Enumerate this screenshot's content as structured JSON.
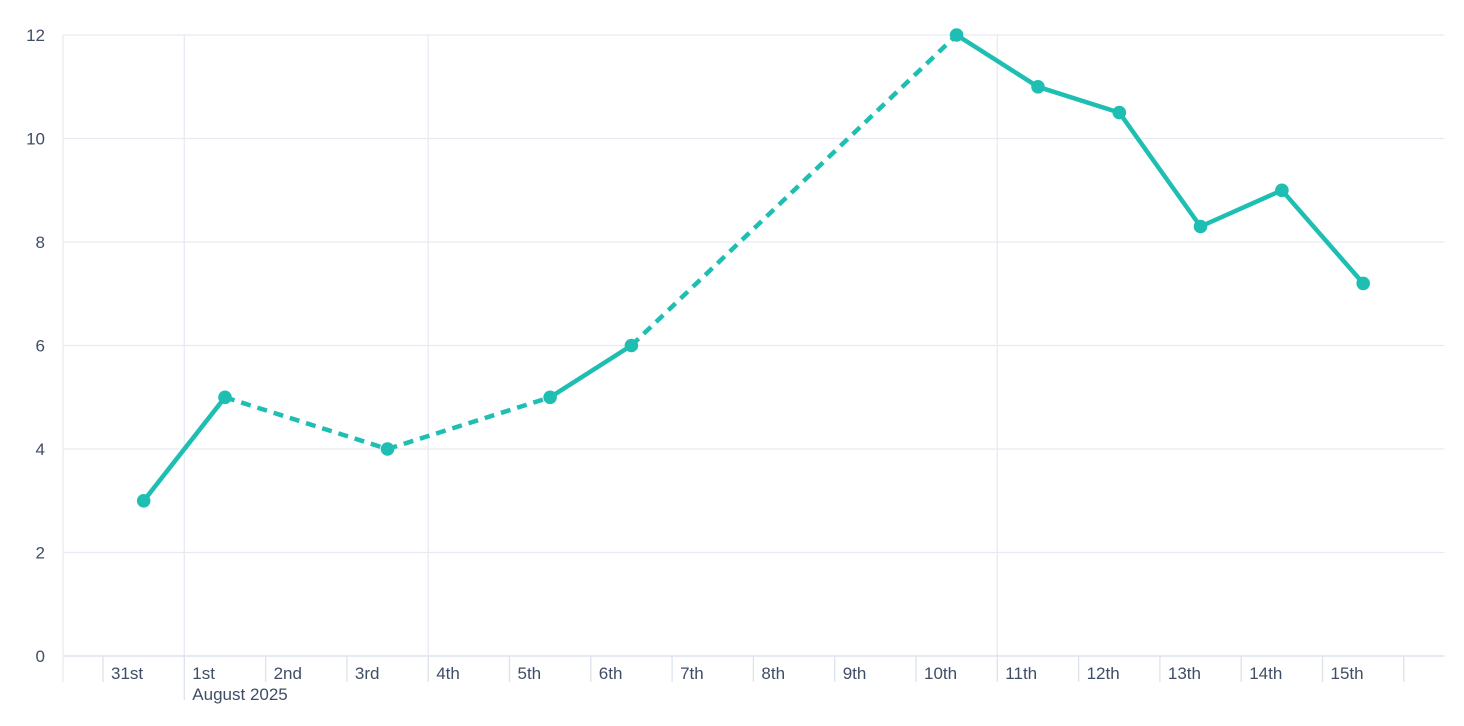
{
  "chart_data": {
    "type": "line",
    "title": "",
    "legend": "none",
    "grid": true,
    "x_axis": {
      "tick_labels": [
        "31st",
        "1st",
        "2nd",
        "3rd",
        "4th",
        "5th",
        "6th",
        "7th",
        "8th",
        "9th",
        "10th",
        "11th",
        "12th",
        "13th",
        "14th",
        "15th"
      ],
      "month_label": "August 2025",
      "month_label_under": "1st",
      "vertical_gridlines_at": [
        "1st",
        "4th",
        "11th"
      ]
    },
    "y_axis": {
      "ticks": [
        0,
        2,
        4,
        6,
        8,
        10,
        12
      ],
      "range": [
        0,
        12
      ]
    },
    "series": [
      {
        "name": "series-1",
        "points": [
          {
            "date": "31st",
            "x": 0,
            "y": 3
          },
          {
            "date": "1st",
            "x": 1,
            "y": 5
          },
          {
            "date": "3rd",
            "x": 3,
            "y": 4
          },
          {
            "date": "5th",
            "x": 5,
            "y": 5
          },
          {
            "date": "6th",
            "x": 6,
            "y": 6
          },
          {
            "date": "10th",
            "x": 10,
            "y": 12
          },
          {
            "date": "11th",
            "x": 11,
            "y": 11
          },
          {
            "date": "12th",
            "x": 12,
            "y": 10.5
          },
          {
            "date": "13th",
            "x": 13,
            "y": 8.3
          },
          {
            "date": "14th",
            "x": 14,
            "y": 9
          },
          {
            "date": "15th",
            "x": 15,
            "y": 7.2
          }
        ],
        "segments": [
          {
            "from": 0,
            "to": 1,
            "style": "solid"
          },
          {
            "from": 1,
            "to": 3,
            "style": "dashed"
          },
          {
            "from": 3,
            "to": 5,
            "style": "dashed"
          },
          {
            "from": 5,
            "to": 6,
            "style": "solid"
          },
          {
            "from": 6,
            "to": 10,
            "style": "dashed"
          },
          {
            "from": 10,
            "to": 15,
            "style": "solid"
          }
        ]
      }
    ],
    "colors": {
      "line": "#1ebfb2",
      "marker": "#1ebfb2",
      "gridline": "#e7eaf3",
      "axis_line": "#dde2ec",
      "tick_label": "#3f4d66"
    }
  }
}
